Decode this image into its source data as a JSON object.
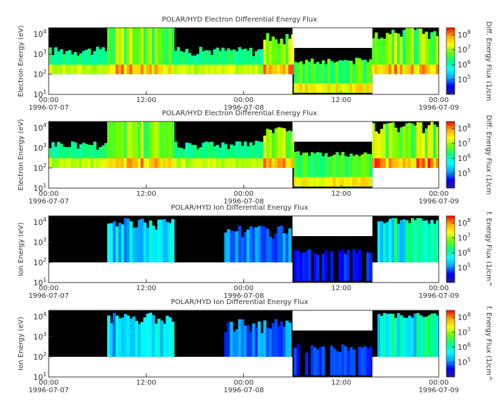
{
  "colors": {
    "background": "#ffffff",
    "no_data": "#ffffff",
    "low_flux": "#000000",
    "axis": "#333333",
    "colormap": [
      "#1c1c9a",
      "#0000ff",
      "#00aaff",
      "#00ffff",
      "#00ff88",
      "#66ff00",
      "#ffff00",
      "#ffaa00",
      "#ff0000"
    ]
  },
  "chart_data": [
    {
      "type": "heatmap",
      "title": "POLAR/HYD  Electron Differential Energy Flux",
      "ylabel": "Electron Energy (eV)",
      "colorbar_label": "Diff. Energy Flux (1/cm",
      "y_scale": "log",
      "ylim": [
        10,
        20000
      ],
      "y_ticks": [
        {
          "base": "10",
          "exp": "1"
        },
        {
          "base": "10",
          "exp": "2"
        },
        {
          "base": "10",
          "exp": "3"
        },
        {
          "base": "10",
          "exp": "4"
        }
      ],
      "colorbar_ticks": [
        {
          "base": "10",
          "exp": "5"
        },
        {
          "base": "10",
          "exp": "6"
        },
        {
          "base": "10",
          "exp": "7"
        },
        {
          "base": "10",
          "exp": "8"
        }
      ],
      "colorbar_range": [
        10000,
        300000000
      ],
      "x_ticks": [
        {
          "time": "00:00",
          "date": "1996-07-07"
        },
        {
          "time": "12:00",
          "date": ""
        },
        {
          "time": "00:00",
          "date": "1996-07-08"
        },
        {
          "time": "12:00",
          "date": ""
        },
        {
          "time": "00:00",
          "date": "1996-07-09"
        }
      ],
      "xlim": [
        "1996-07-07 00:00",
        "1996-07-09 00:00"
      ]
    },
    {
      "type": "heatmap",
      "title": "POLAR/HYD  Electron Differential Energy Flux",
      "ylabel": "Electron Energy (eV)",
      "colorbar_label": "Diff. Energy Flux (1/cm",
      "y_scale": "log",
      "ylim": [
        10,
        20000
      ],
      "y_ticks": [
        {
          "base": "10",
          "exp": "1"
        },
        {
          "base": "10",
          "exp": "2"
        },
        {
          "base": "10",
          "exp": "3"
        },
        {
          "base": "10",
          "exp": "4"
        }
      ],
      "colorbar_ticks": [
        {
          "base": "10",
          "exp": "5"
        },
        {
          "base": "10",
          "exp": "6"
        },
        {
          "base": "10",
          "exp": "7"
        },
        {
          "base": "10",
          "exp": "8"
        }
      ],
      "colorbar_range": [
        10000,
        300000000
      ],
      "x_ticks": [
        {
          "time": "00:00",
          "date": "1996-07-07"
        },
        {
          "time": "12:00",
          "date": ""
        },
        {
          "time": "00:00",
          "date": "1996-07-08"
        },
        {
          "time": "12:00",
          "date": ""
        },
        {
          "time": "00:00",
          "date": "1996-07-09"
        }
      ],
      "xlim": [
        "1996-07-07 00:00",
        "1996-07-09 00:00"
      ]
    },
    {
      "type": "heatmap",
      "title": "POLAR/HYD  Ion Differential Energy Flux",
      "ylabel": "Ion Energy (eV)",
      "colorbar_label": "f. Energy Flux (1/cm^",
      "y_scale": "log",
      "ylim": [
        10,
        20000
      ],
      "y_ticks": [
        {
          "base": "10",
          "exp": "1"
        },
        {
          "base": "10",
          "exp": "2"
        },
        {
          "base": "10",
          "exp": "3"
        },
        {
          "base": "10",
          "exp": "4"
        }
      ],
      "colorbar_ticks": [
        {
          "base": "10",
          "exp": "5"
        },
        {
          "base": "10",
          "exp": "6"
        },
        {
          "base": "10",
          "exp": "7"
        },
        {
          "base": "10",
          "exp": "8"
        }
      ],
      "colorbar_range": [
        10000,
        300000000
      ],
      "x_ticks": [
        {
          "time": "00:00",
          "date": "1996-07-07"
        },
        {
          "time": "12:00",
          "date": ""
        },
        {
          "time": "00:00",
          "date": "1996-07-08"
        },
        {
          "time": "12:00",
          "date": ""
        },
        {
          "time": "00:00",
          "date": "1996-07-09"
        }
      ],
      "xlim": [
        "1996-07-07 00:00",
        "1996-07-09 00:00"
      ]
    },
    {
      "type": "heatmap",
      "title": "POLAR/HYD  Ion Differential Energy Flux",
      "ylabel": "Ion Energy (eV)",
      "colorbar_label": "f. Energy Flux (1/cm^",
      "y_scale": "log",
      "ylim": [
        10,
        20000
      ],
      "y_ticks": [
        {
          "base": "10",
          "exp": "1"
        },
        {
          "base": "10",
          "exp": "2"
        },
        {
          "base": "10",
          "exp": "3"
        },
        {
          "base": "10",
          "exp": "4"
        }
      ],
      "colorbar_ticks": [
        {
          "base": "10",
          "exp": "5"
        },
        {
          "base": "10",
          "exp": "6"
        },
        {
          "base": "10",
          "exp": "7"
        },
        {
          "base": "10",
          "exp": "8"
        }
      ],
      "colorbar_range": [
        10000,
        300000000
      ],
      "x_ticks": [
        {
          "time": "00:00",
          "date": "1996-07-07"
        },
        {
          "time": "12:00",
          "date": ""
        },
        {
          "time": "00:00",
          "date": "1996-07-08"
        },
        {
          "time": "12:00",
          "date": ""
        },
        {
          "time": "00:00",
          "date": "1996-07-09"
        }
      ],
      "xlim": [
        "1996-07-07 00:00",
        "1996-07-09 00:00"
      ]
    }
  ]
}
